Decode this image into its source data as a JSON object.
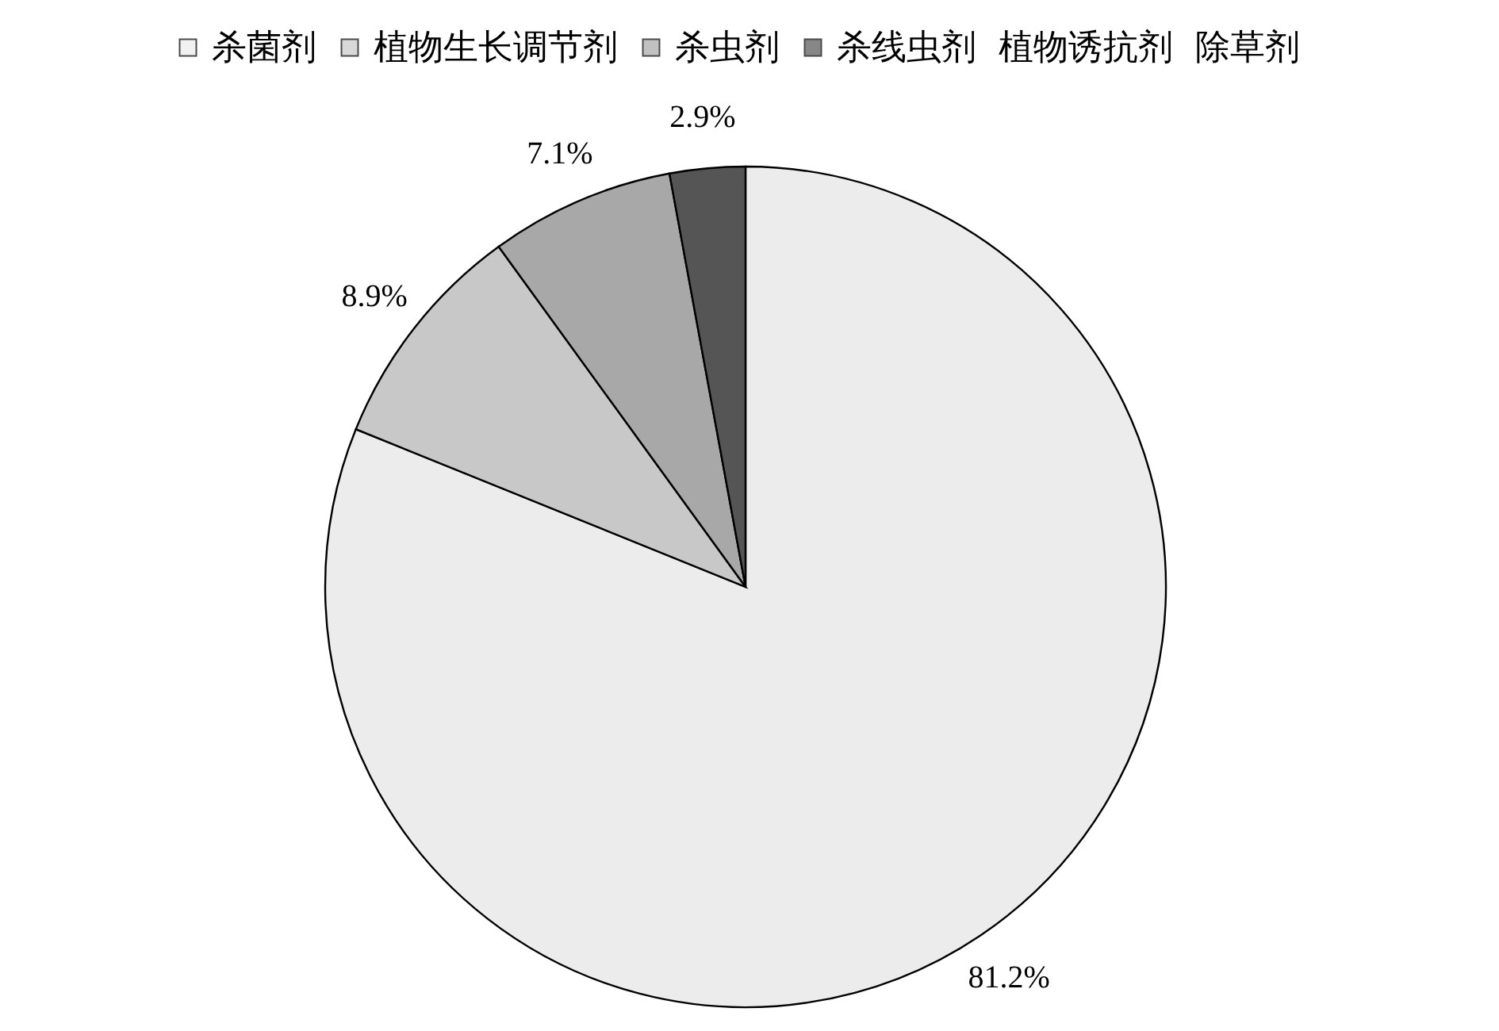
{
  "chart_data": {
    "type": "pie",
    "categories": [
      "杀菌剂",
      "植物生长调节剂",
      "杀虫剂",
      "杀线虫剂",
      "植物诱抗剂",
      "除草剂"
    ],
    "values": [
      81.2,
      8.9,
      7.1,
      2.9,
      0,
      0
    ],
    "colors": [
      "#ececec",
      "#c8c8c8",
      "#a8a8a8",
      "#555555",
      "#ffffff",
      "#ffffff"
    ],
    "value_labels": [
      "81.2%",
      "8.9%",
      "7.1%",
      "2.9%",
      null,
      null
    ],
    "legend": "top"
  }
}
